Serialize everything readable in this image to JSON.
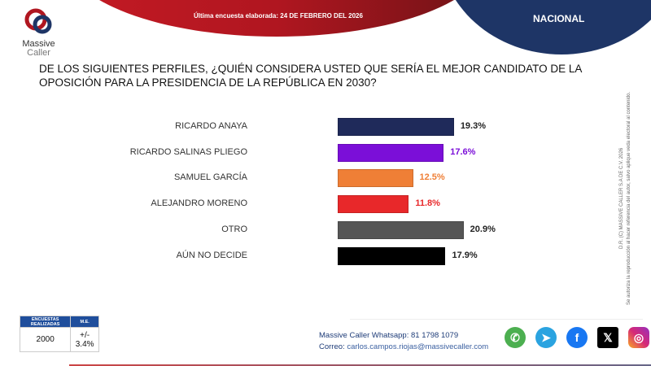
{
  "header": {
    "survey_date": "Última encuesta elaborada: 24 DE FEBRERO DEL 2026",
    "region": "NACIONAL",
    "logo_text": [
      "Massive",
      "Caller"
    ]
  },
  "question": "DE LOS SIGUIENTES PERFILES, ¿QUIÉN CONSIDERA USTED QUE SERÍA EL MEJOR CANDIDATO DE LA OPOSICIÓN PARA LA PRESIDENCIA DE LA REPÚBLICA EN 2030?",
  "chart_data": {
    "type": "bar",
    "orientation": "horizontal",
    "categories": [
      "RICARDO ANAYA",
      "RICARDO SALINAS PLIEGO",
      "SAMUEL GARCÍA",
      "ALEJANDRO MORENO",
      "OTRO",
      "AÚN NO DECIDE"
    ],
    "values": [
      19.3,
      17.6,
      12.5,
      11.8,
      20.9,
      17.9
    ],
    "labels": [
      "19.3%",
      "17.6%",
      "12.5%",
      "11.8%",
      "20.9%",
      "17.9%"
    ],
    "colors": [
      "#1f2a5a",
      "#7b0fd8",
      "#ef7f36",
      "#e8282a",
      "#555555",
      "#000000"
    ],
    "label_colors": [
      "#222222",
      "#7b0fd8",
      "#ef7f36",
      "#e8282a",
      "#222222",
      "#222222"
    ]
  },
  "copyright": [
    "D.R. (C) MASSIVE CALLER S.A DE C.V. 2026",
    "Se autoriza la reproducción al hacer referencia del autor, salvo aplique veda electoral al contenido."
  ],
  "stats": {
    "headers": [
      "ENCUESTAS REALIZADAS",
      "M.E."
    ],
    "values": [
      "2000",
      "+/- 3.4%"
    ]
  },
  "contact": {
    "whatsapp_label": "Massive Caller Whatsapp:",
    "whatsapp": "81 1798 1079",
    "email_label": "Correo:",
    "email": "carlos.campos.riojas@massivecaller.com"
  },
  "social": [
    {
      "icon": "whatsapp-icon",
      "color": "#4caf50",
      "glyph": "✆"
    },
    {
      "icon": "telegram-icon",
      "color": "#2aa3e0",
      "glyph": "➤"
    },
    {
      "icon": "facebook-icon",
      "color": "#1877f2",
      "glyph": "f"
    },
    {
      "icon": "x-icon",
      "color": "#000000",
      "glyph": "𝕏"
    },
    {
      "icon": "instagram-icon",
      "color": "#d62976",
      "glyph": "◎"
    }
  ]
}
